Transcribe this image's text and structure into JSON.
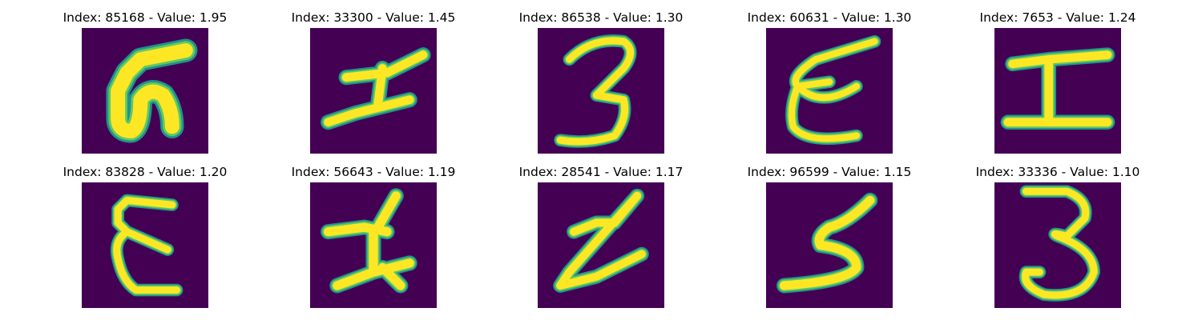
{
  "colors": {
    "background": "#440154",
    "stroke_edge": "#21918c",
    "stroke_mid": "#5ec962",
    "stroke_core": "#fde725"
  },
  "panels": [
    {
      "title": "Index: 85168 - Value: 1.95",
      "glyph": "5"
    },
    {
      "title": "Index: 33300 - Value: 1.45",
      "glyph": "I"
    },
    {
      "title": "Index: 86538 - Value: 1.30",
      "glyph": "3"
    },
    {
      "title": "Index: 60631 - Value: 1.30",
      "glyph": "E"
    },
    {
      "title": "Index: 7653 - Value: 1.24",
      "glyph": "I"
    },
    {
      "title": "Index: 83828 - Value: 1.20",
      "glyph": "E"
    },
    {
      "title": "Index: 56643 - Value: 1.19",
      "glyph": "I"
    },
    {
      "title": "Index: 28541 - Value: 1.17",
      "glyph": "Z"
    },
    {
      "title": "Index: 96599 - Value: 1.15",
      "glyph": "5"
    },
    {
      "title": "Index: 33336 - Value: 1.10",
      "glyph": "3"
    }
  ]
}
